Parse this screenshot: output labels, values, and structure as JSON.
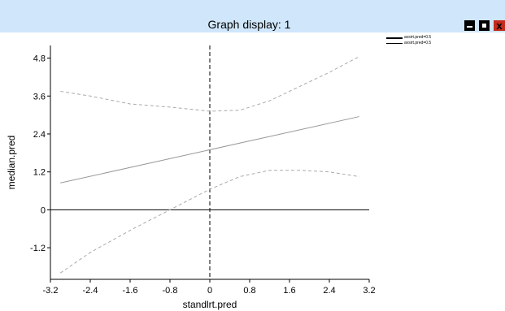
{
  "window": {
    "title": "Graph display: 1",
    "controls": {
      "minimize_icon": "minimize-icon",
      "maximize_icon": "maximize-icon",
      "close_icon": "close-icon",
      "close_symbol": "x"
    },
    "colors": {
      "titlebar": "#cfe6fb",
      "close": "#c42b1c"
    }
  },
  "legend": {
    "items": [
      {
        "label": "avsirt.pred=0.5",
        "style": "thick-solid"
      },
      {
        "label": "avsirt.pred=0.5",
        "style": "thin-solid"
      }
    ]
  },
  "chart_data": {
    "type": "line",
    "xlabel": "standlrt.pred",
    "ylabel": "median.pred",
    "xlim": [
      -3.2,
      3.2
    ],
    "ylim": [
      -2.2,
      5.2
    ],
    "xticks": [
      "-3.2",
      "-2.4",
      "-1.6",
      "-0.8",
      "0",
      "0.8",
      "1.6",
      "2.4",
      "3.2"
    ],
    "yticks": [
      "4.8",
      "3.6",
      "2.4",
      "1.2",
      "0",
      "-1.2"
    ],
    "ytick_values": [
      4.8,
      3.6,
      2.4,
      1.2,
      0,
      -1.2
    ],
    "xtick_values": [
      -3.2,
      -2.4,
      -1.6,
      -0.8,
      0,
      0.8,
      1.6,
      2.4,
      3.2
    ],
    "reference_lines": {
      "x": 0,
      "y": 0
    },
    "series": [
      {
        "style": "solid",
        "color": "#999999",
        "x": [
          -3.0,
          3.0
        ],
        "y": [
          0.85,
          2.95
        ]
      },
      {
        "style": "dashed",
        "color": "#aaaaaa",
        "x": [
          -3.0,
          -2.4,
          -1.6,
          -0.8,
          0.0,
          0.6,
          1.2,
          1.8,
          2.4,
          3.0
        ],
        "y": [
          3.75,
          3.6,
          3.35,
          3.25,
          3.12,
          3.15,
          3.45,
          3.9,
          4.35,
          4.85
        ]
      },
      {
        "style": "dashed",
        "color": "#aaaaaa",
        "x": [
          -3.0,
          -2.4,
          -1.6,
          -0.8,
          0.0,
          0.6,
          1.2,
          1.8,
          2.4,
          3.0
        ],
        "y": [
          -2.0,
          -1.35,
          -0.65,
          0.0,
          0.65,
          1.05,
          1.25,
          1.25,
          1.2,
          1.05
        ]
      }
    ]
  }
}
